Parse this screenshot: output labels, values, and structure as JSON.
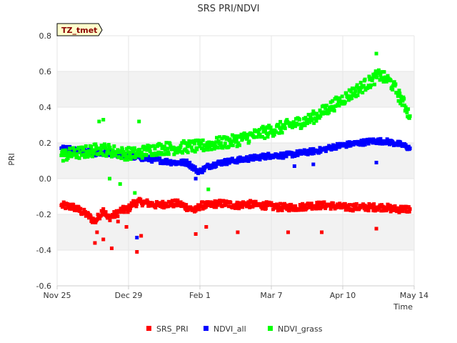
{
  "chart_data": {
    "type": "scatter",
    "title": "SRS PRI/NDVI",
    "site_tag": "TZ_tmet",
    "xlabel": "Time",
    "ylabel": "PRI",
    "x_range_days": [
      0,
      170
    ],
    "x_ticks": [
      {
        "label": "Nov 25",
        "day": 0
      },
      {
        "label": "Dec 29",
        "day": 34
      },
      {
        "label": "Feb 1",
        "day": 68
      },
      {
        "label": "Mar 7",
        "day": 102
      },
      {
        "label": "Apr 10",
        "day": 136
      },
      {
        "label": "May 14",
        "day": 170
      }
    ],
    "ylim": [
      -0.6,
      0.8
    ],
    "y_ticks": [
      -0.6,
      -0.4,
      -0.2,
      0.0,
      0.2,
      0.4,
      0.6,
      0.8
    ],
    "y_tick_labels": [
      "-0.6",
      "-0.4",
      "-0.2",
      "0.0",
      "0.2",
      "0.4",
      "0.6",
      "0.8"
    ],
    "series": [
      {
        "name": "SRS_PRI",
        "color": "#ff0000",
        "x": [
          2,
          8,
          14,
          18,
          20,
          22,
          24,
          28,
          30,
          34,
          36,
          40,
          44,
          48,
          52,
          58,
          62,
          66,
          68,
          72,
          76,
          80,
          86,
          90,
          96,
          100,
          104,
          110,
          116,
          120,
          126,
          130,
          136,
          142,
          148,
          152,
          156,
          160,
          164,
          168
        ],
        "y": [
          -0.15,
          -0.16,
          -0.2,
          -0.24,
          -0.21,
          -0.17,
          -0.22,
          -0.2,
          -0.18,
          -0.17,
          -0.14,
          -0.13,
          -0.14,
          -0.15,
          -0.14,
          -0.14,
          -0.16,
          -0.18,
          -0.15,
          -0.15,
          -0.14,
          -0.14,
          -0.15,
          -0.14,
          -0.15,
          -0.15,
          -0.16,
          -0.16,
          -0.16,
          -0.15,
          -0.15,
          -0.15,
          -0.16,
          -0.16,
          -0.16,
          -0.16,
          -0.16,
          -0.17,
          -0.17,
          -0.17
        ],
        "outliers_x": [
          18,
          19,
          22,
          26,
          29,
          33,
          38,
          40,
          66,
          71,
          86,
          110,
          126,
          152
        ],
        "outliers_y": [
          -0.36,
          -0.3,
          -0.34,
          -0.39,
          -0.24,
          -0.27,
          -0.41,
          -0.32,
          -0.31,
          -0.27,
          -0.3,
          -0.3,
          -0.3,
          -0.28
        ]
      },
      {
        "name": "NDVI_all",
        "color": "#0000ff",
        "x": [
          2,
          8,
          14,
          20,
          26,
          32,
          38,
          44,
          50,
          56,
          62,
          66,
          68,
          72,
          78,
          84,
          90,
          96,
          102,
          108,
          114,
          120,
          126,
          132,
          138,
          144,
          150,
          156,
          160,
          164,
          168
        ],
        "y": [
          0.17,
          0.16,
          0.15,
          0.14,
          0.14,
          0.13,
          0.12,
          0.11,
          0.1,
          0.09,
          0.09,
          0.05,
          0.04,
          0.07,
          0.09,
          0.1,
          0.11,
          0.12,
          0.13,
          0.13,
          0.14,
          0.15,
          0.16,
          0.18,
          0.19,
          0.2,
          0.21,
          0.21,
          0.2,
          0.19,
          0.17
        ],
        "outliers_x": [
          38,
          66,
          152,
          113,
          122
        ],
        "outliers_y": [
          -0.33,
          0.0,
          0.09,
          0.07,
          0.08
        ]
      },
      {
        "name": "NDVI_grass",
        "color": "#00ff00",
        "x": [
          2,
          8,
          14,
          18,
          20,
          24,
          28,
          32,
          38,
          44,
          50,
          56,
          62,
          68,
          72,
          78,
          84,
          90,
          96,
          102,
          108,
          114,
          120,
          126,
          130,
          134,
          138,
          142,
          146,
          150,
          152,
          154,
          156,
          158,
          160,
          162,
          164,
          166,
          168
        ],
        "y": [
          0.13,
          0.14,
          0.15,
          0.16,
          0.17,
          0.16,
          0.15,
          0.14,
          0.14,
          0.16,
          0.17,
          0.17,
          0.18,
          0.18,
          0.19,
          0.2,
          0.21,
          0.23,
          0.25,
          0.27,
          0.29,
          0.31,
          0.33,
          0.37,
          0.4,
          0.43,
          0.46,
          0.49,
          0.52,
          0.55,
          0.57,
          0.58,
          0.56,
          0.55,
          0.52,
          0.48,
          0.44,
          0.4,
          0.35
        ],
        "outliers_x": [
          20,
          22,
          25,
          30,
          37,
          39,
          72,
          152
        ],
        "outliers_y": [
          0.32,
          0.33,
          0.0,
          -0.03,
          -0.08,
          0.32,
          -0.06,
          0.7
        ]
      }
    ],
    "legend_position": "bottom-center",
    "grid": "alternating-bands"
  }
}
